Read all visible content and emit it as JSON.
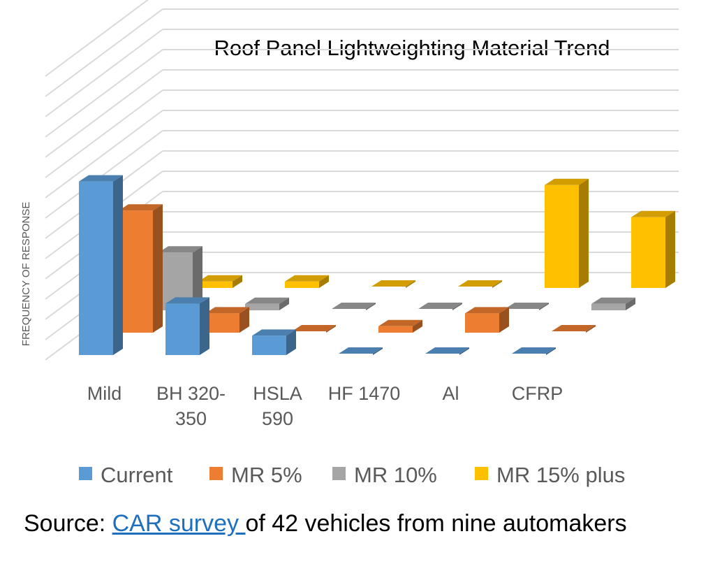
{
  "chart_data": {
    "type": "bar",
    "variant": "3d-clustered-column",
    "title": "Roof Panel Lightweighting Material Trend",
    "ylabel": "FREQUENCY OF RESPONSE",
    "xlabel": "",
    "categories": [
      [
        "Mild"
      ],
      [
        "BH 320-",
        "350"
      ],
      [
        "HSLA",
        "590"
      ],
      [
        "HF 1470"
      ],
      [
        "Al"
      ],
      [
        "CFRP"
      ]
    ],
    "series": [
      {
        "name": "Current",
        "color": "#5b9bd5",
        "values": [
          27,
          8,
          3,
          0,
          0,
          0
        ]
      },
      {
        "name": "MR 5%",
        "color": "#ed7d31",
        "values": [
          19,
          3,
          0,
          1,
          3,
          0
        ]
      },
      {
        "name": "MR 10%",
        "color": "#a5a5a5",
        "values": [
          9,
          1,
          0,
          0,
          0,
          1
        ]
      },
      {
        "name": "MR 15% plus",
        "color": "#ffc000",
        "values": [
          1,
          1,
          0,
          0,
          16,
          11
        ]
      }
    ],
    "ylim": [
      0,
      30
    ],
    "grid": true,
    "legend": "bottom"
  },
  "source": {
    "prefix": "Source: ",
    "link_text": "CAR survey ",
    "suffix": "of 42 vehicles from nine automakers"
  }
}
